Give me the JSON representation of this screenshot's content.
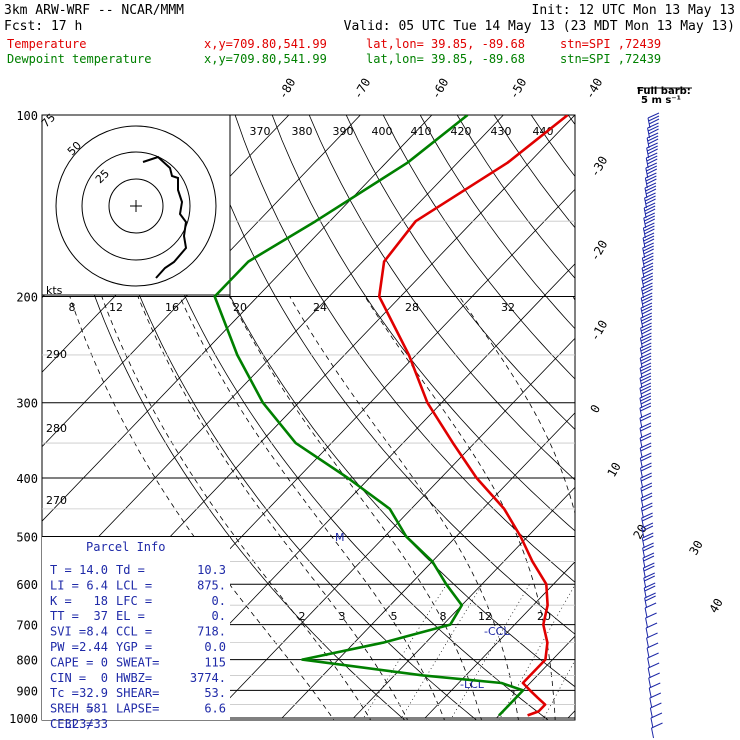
{
  "header": {
    "model": "3km ARW-WRF -- NCAR/MMM",
    "init": "Init: 12 UTC Mon 13 May 13",
    "fcst": "Fcst:    17 h",
    "valid": "Valid: 05 UTC Tue 14 May 13 (23 MDT Mon 13 May 13)"
  },
  "legend": [
    {
      "name": "Temperature",
      "coords": "x,y=709.80,541.99",
      "latlon": "lat,lon= 39.85, -89.68",
      "stn": "stn=SPI ,72439",
      "color": "#e00000"
    },
    {
      "name": "Dewpoint temperature",
      "coords": "x,y=709.80,541.99",
      "latlon": "lat,lon= 39.85, -89.68",
      "stn": "stn=SPI ,72439",
      "color": "#008000"
    }
  ],
  "barb_key": {
    "line1": "Full barb:",
    "line2": "5 m s⁻¹"
  },
  "hodo": {
    "units": "kts",
    "ring_labels": [
      "25",
      "50",
      "75"
    ]
  },
  "parcel_info": {
    "title": "Parcel Info",
    "rows": [
      {
        "l": "T   =",
        "lv": "14.0",
        "r": "Td =",
        "rv": "10.3"
      },
      {
        "l": "LI  =",
        "lv": "6.4",
        "r": "LCL =",
        "rv": "875."
      },
      {
        "l": "K   =",
        "lv": "18",
        "r": "LFC =",
        "rv": "0."
      },
      {
        "l": "TT  =",
        "lv": "37",
        "r": "EL  =",
        "rv": "0."
      },
      {
        "l": "SVI =",
        "lv": "8.4",
        "r": "CCL =",
        "rv": "718."
      },
      {
        "l": "PW  =",
        "lv": "2.44",
        "r": "YGP =",
        "rv": "0.0"
      },
      {
        "l": "CAPE =",
        "lv": "0",
        "r": "SWEAT=",
        "rv": "115"
      },
      {
        "l": "CIN  =",
        "lv": "0",
        "r": "HWBZ=",
        "rv": "3774."
      },
      {
        "l": "Tc   =",
        "lv": "32.9",
        "r": "SHEAR=",
        "rv": "53."
      },
      {
        "l": "SREH =",
        "lv": "581",
        "r": "LAPSE=",
        "rv": "6.6"
      },
      {
        "l": "CELL =",
        "lv": "323/33",
        "r": "",
        "rv": ""
      }
    ]
  },
  "chart_data": {
    "type": "line",
    "title": "",
    "pressure_levels": [
      100,
      200,
      300,
      400,
      500,
      600,
      700,
      800,
      900,
      1000
    ],
    "isotherm_labels": [
      -80,
      -70,
      -60,
      -50,
      -40,
      -30,
      -20,
      -10,
      0,
      10,
      20,
      30,
      40
    ],
    "theta_labels": [
      370,
      380,
      390,
      400,
      410,
      420,
      430,
      440
    ],
    "theta_left_labels": [
      290,
      280,
      270
    ],
    "mixing_ratio_labels_upper": [
      8,
      12,
      16,
      20,
      24,
      28,
      32
    ],
    "mixing_ratio_labels_lower": [
      2,
      3,
      5,
      8,
      12,
      20
    ],
    "annotations": [
      "M",
      "-CCL",
      "-LCL"
    ],
    "series": [
      {
        "name": "Temperature",
        "color": "#e00000",
        "points": [
          [
            100,
            -61
          ],
          [
            120,
            -63
          ],
          [
            150,
            -68
          ],
          [
            175,
            -67
          ],
          [
            200,
            -63
          ],
          [
            250,
            -51
          ],
          [
            300,
            -42
          ],
          [
            350,
            -33
          ],
          [
            400,
            -25
          ],
          [
            450,
            -17
          ],
          [
            500,
            -11
          ],
          [
            550,
            -6
          ],
          [
            600,
            -1
          ],
          [
            650,
            2
          ],
          [
            700,
            4
          ],
          [
            750,
            7
          ],
          [
            800,
            9
          ],
          [
            850,
            9
          ],
          [
            875,
            9
          ],
          [
            900,
            11
          ],
          [
            925,
            13
          ],
          [
            950,
            15
          ],
          [
            975,
            15
          ],
          [
            990,
            14
          ]
        ]
      },
      {
        "name": "Dewpoint temperature",
        "color": "#008000",
        "points": [
          [
            100,
            -75
          ],
          [
            120,
            -77
          ],
          [
            150,
            -82
          ],
          [
            175,
            -86
          ],
          [
            200,
            -86
          ],
          [
            250,
            -75
          ],
          [
            300,
            -65
          ],
          [
            350,
            -55
          ],
          [
            400,
            -43
          ],
          [
            450,
            -33
          ],
          [
            500,
            -27
          ],
          [
            550,
            -20
          ],
          [
            600,
            -15
          ],
          [
            650,
            -10
          ],
          [
            700,
            -9
          ],
          [
            750,
            -16
          ],
          [
            800,
            -25
          ],
          [
            850,
            -6
          ],
          [
            875,
            6
          ],
          [
            900,
            10
          ],
          [
            925,
            10
          ],
          [
            950,
            10
          ],
          [
            975,
            10
          ],
          [
            990,
            10
          ]
        ]
      }
    ]
  }
}
